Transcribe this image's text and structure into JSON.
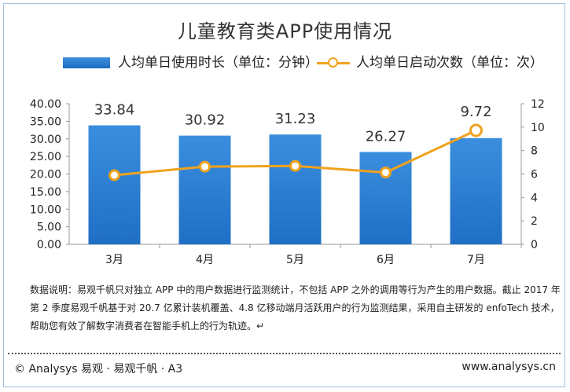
{
  "chart_data": {
    "type": "bar+line",
    "title": "儿童教育类APP使用情况",
    "categories": [
      "3月",
      "4月",
      "5月",
      "6月",
      "7月"
    ],
    "series": [
      {
        "name": "人均单日使用时长（单位：分钟）",
        "type": "bar",
        "axis": "left",
        "values": [
          33.84,
          30.92,
          31.23,
          26.27,
          30.21
        ],
        "data_labels": [
          "33.84",
          "30.92",
          "31.23",
          "26.27",
          null
        ]
      },
      {
        "name": "人均单日启动次数（单位：次）",
        "type": "line",
        "axis": "right",
        "values": [
          5.9,
          6.63,
          6.69,
          6.13,
          9.72
        ],
        "data_labels": [
          null,
          null,
          null,
          null,
          "9.72"
        ]
      }
    ],
    "ylim_left": [
      0,
      40
    ],
    "yticks_left": [
      "0.00",
      "5.00",
      "10.00",
      "15.00",
      "20.00",
      "25.00",
      "30.00",
      "35.00",
      "40.00"
    ],
    "ylim_right": [
      0,
      12
    ],
    "yticks_right": [
      "0",
      "2",
      "4",
      "6",
      "8",
      "10",
      "12"
    ],
    "colors": {
      "bar": "#1f6fc5",
      "bar_light": "#3b8ede",
      "line": "#f0a21e"
    }
  },
  "note": "数据说明：易观千帆只对独立 APP 中的用户数据进行监测统计，不包括 APP 之外的调用等行为产生的用户数据。截止 2017 年第 2 季度易观千帆基于对 20.7 亿累计装机覆盖、4.8 亿移动端月活跃用户的行为监测结果，采用自主研发的 enfoTech 技术，帮助您有效了解数字消费者在智能手机上的行为轨迹。↵",
  "footer": {
    "left": "© Analysys 易观 · 易观千帆 · A3",
    "right": "www.analysys.cn"
  }
}
